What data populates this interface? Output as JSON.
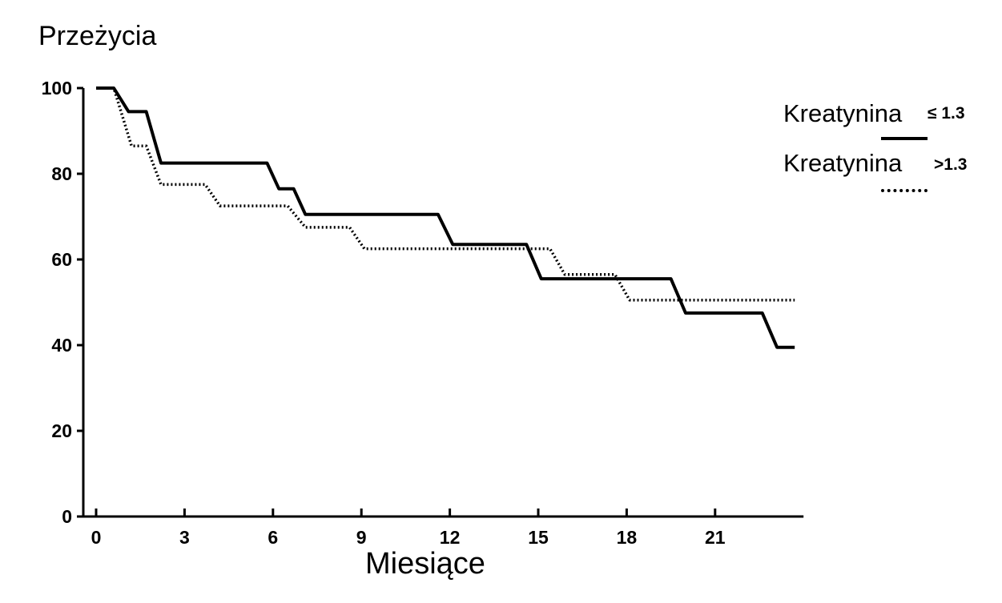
{
  "chart_data": {
    "type": "line",
    "step": true,
    "ylabel": "Przeżycia",
    "xlabel": "Miesiące",
    "xlim": [
      -0.5,
      24
    ],
    "ylim": [
      0,
      100
    ],
    "xticks": [
      0,
      3,
      6,
      9,
      12,
      15,
      18,
      21
    ],
    "yticks": [
      0,
      20,
      40,
      60,
      80,
      100
    ],
    "grid": false,
    "legend_position": "top-right",
    "series": [
      {
        "name_text": "Kreatynina",
        "condition": "≤ 1.3",
        "style": "solid",
        "points": [
          [
            0,
            100
          ],
          [
            0.6,
            100
          ],
          [
            1.1,
            94.5
          ],
          [
            1.7,
            94.5
          ],
          [
            2.2,
            82.5
          ],
          [
            5.8,
            82.5
          ],
          [
            6.2,
            76.5
          ],
          [
            6.7,
            76.5
          ],
          [
            7.1,
            70.5
          ],
          [
            11.6,
            70.5
          ],
          [
            12.1,
            63.5
          ],
          [
            14.6,
            63.5
          ],
          [
            15.1,
            55.5
          ],
          [
            19.5,
            55.5
          ],
          [
            20.0,
            47.5
          ],
          [
            22.6,
            47.5
          ],
          [
            23.1,
            39.5
          ],
          [
            23.7,
            39.5
          ]
        ]
      },
      {
        "name_text": "Kreatynina",
        "condition": ">1.3",
        "style": "dotted",
        "points": [
          [
            0,
            100
          ],
          [
            0.6,
            100
          ],
          [
            1.2,
            86.5
          ],
          [
            1.7,
            86.5
          ],
          [
            2.2,
            77.5
          ],
          [
            3.7,
            77.5
          ],
          [
            4.2,
            72.5
          ],
          [
            6.5,
            72.5
          ],
          [
            7.1,
            67.5
          ],
          [
            8.6,
            67.5
          ],
          [
            9.1,
            62.5
          ],
          [
            15.4,
            62.5
          ],
          [
            15.9,
            56.5
          ],
          [
            17.6,
            56.5
          ],
          [
            18.1,
            50.5
          ],
          [
            23.7,
            50.5
          ]
        ]
      }
    ]
  },
  "colors": {
    "line": "#000000",
    "background": "#ffffff"
  }
}
